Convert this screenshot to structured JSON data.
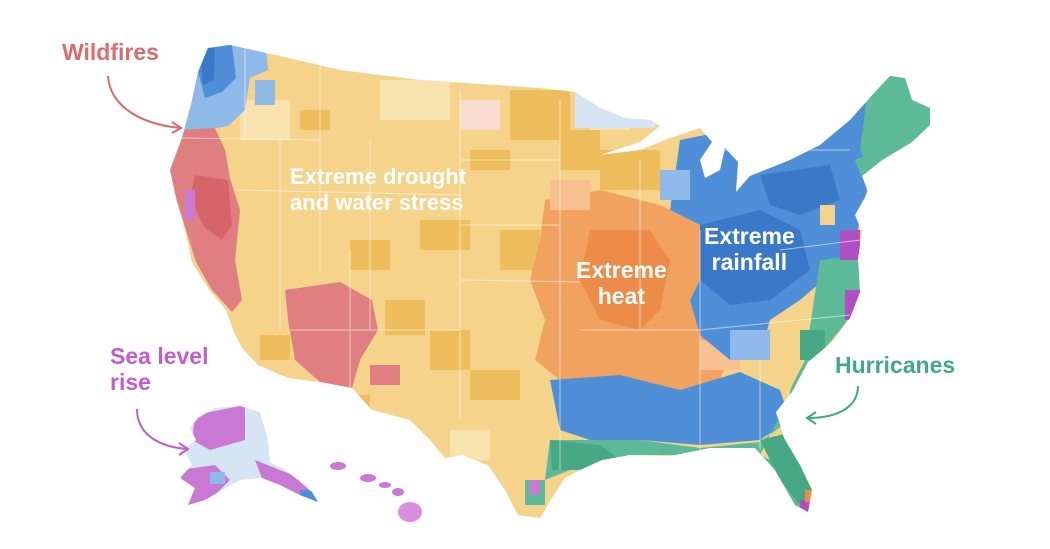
{
  "labels": {
    "wildfires": "Wildfires",
    "drought_line1": "Extreme drought",
    "drought_line2": "and water stress",
    "heat_line1": "Extreme",
    "heat_line2": "heat",
    "rainfall_line1": "Extreme",
    "rainfall_line2": "rainfall",
    "sea_level_line1": "Sea level",
    "sea_level_line2": "rise",
    "hurricanes": "Hurricanes"
  },
  "colors": {
    "drought": "#f5d38a",
    "drought_dark": "#eebe5c",
    "drought_light": "#f8e2ae",
    "heat": "#f2a25f",
    "heat_dark": "#ec8c48",
    "heat_light": "#f6c18f",
    "rainfall": "#4f8fd8",
    "rainfall_dark": "#3a78c8",
    "rainfall_light": "#8fb9e8",
    "wildfire": "#e07f82",
    "wildfire_dark": "#d76469",
    "hurricane": "#5dba98",
    "hurricane_dark": "#47a886",
    "sea_level": "#c979d3",
    "sea_level_dark": "#b04fc1",
    "alaska_light": "#d6e5f3",
    "wildfires_label": "#dc6b6b",
    "sea_level_label": "#c35ccf",
    "hurricanes_label": "#3fa98a"
  }
}
